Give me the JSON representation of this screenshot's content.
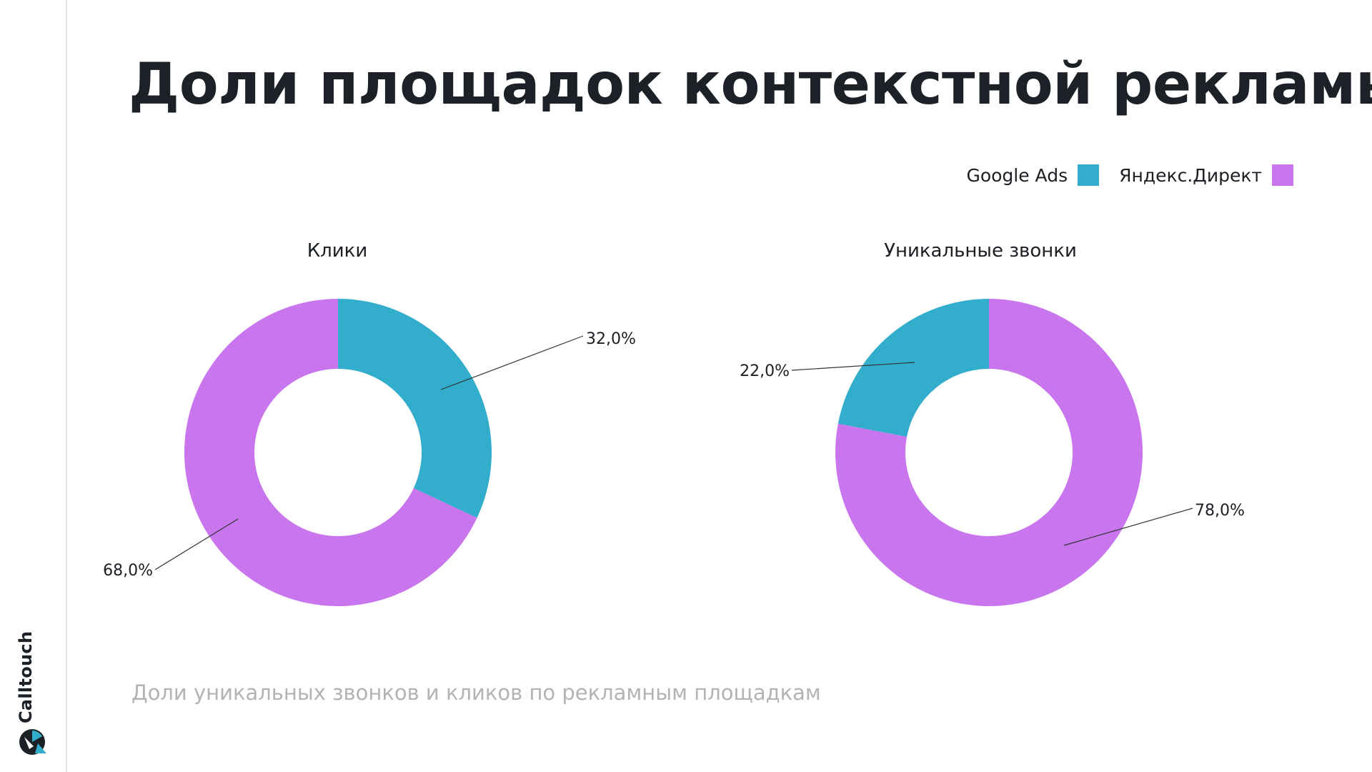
{
  "page": {
    "title": "Доли площадок контекстной рекламы",
    "caption": "Доли уникальных звонков и кликов по рекламным площадкам",
    "brand": "Calltouch"
  },
  "legend": {
    "items": [
      {
        "label": "Google Ads",
        "color": "#33adcc"
      },
      {
        "label": "Яндекс.Директ",
        "color": "#c975ee"
      }
    ]
  },
  "chart_data": [
    {
      "type": "pie",
      "variant": "donut",
      "title": "Клики",
      "categories": [
        "Google Ads",
        "Яндекс.Директ"
      ],
      "values": [
        32.0,
        68.0
      ],
      "value_labels": [
        "32,0%",
        "68,0%"
      ],
      "colors": [
        "#33adcc",
        "#c975ee"
      ],
      "start": "12 o'clock",
      "direction": "clockwise",
      "legend_position": "top-right"
    },
    {
      "type": "pie",
      "variant": "donut",
      "title": "Уникальные звонки",
      "categories": [
        "Google Ads",
        "Яндекс.Директ"
      ],
      "values": [
        22.0,
        78.0
      ],
      "value_labels": [
        "22,0%",
        "78,0%"
      ],
      "colors": [
        "#33adcc",
        "#c975ee"
      ],
      "start": "12 o'clock",
      "direction": "counter-clockwise for Google Ads",
      "legend_position": "top-right"
    }
  ]
}
